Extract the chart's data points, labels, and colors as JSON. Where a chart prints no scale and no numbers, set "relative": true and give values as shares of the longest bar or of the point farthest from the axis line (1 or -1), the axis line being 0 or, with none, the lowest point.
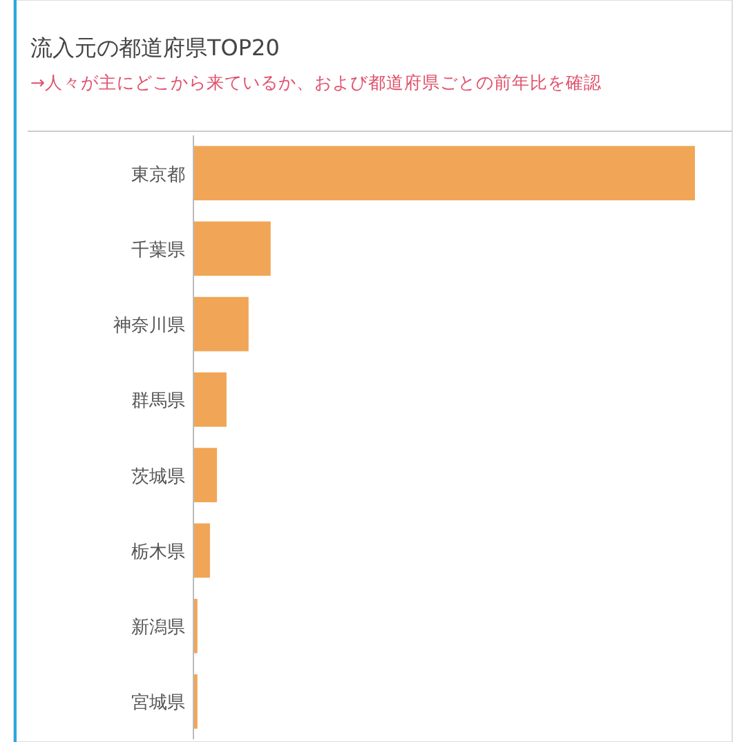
{
  "chart_data": {
    "type": "bar",
    "orientation": "horizontal",
    "relative": true,
    "title": "流入元の都道府県TOP20",
    "subtitle": "→人々が主にどこから来ているか、および都道府県ごとの前年比を確認",
    "categories": [
      "東京都",
      "千葉県",
      "神奈川県",
      "群馬県",
      "茨城県",
      "栃木県",
      "新潟県",
      "宮城県"
    ],
    "series": [
      {
        "color": "#f0a656",
        "values": [
          1,
          0.154,
          0.11,
          0.066,
          0.047,
          0.033,
          0.008,
          0.008
        ]
      }
    ]
  }
}
